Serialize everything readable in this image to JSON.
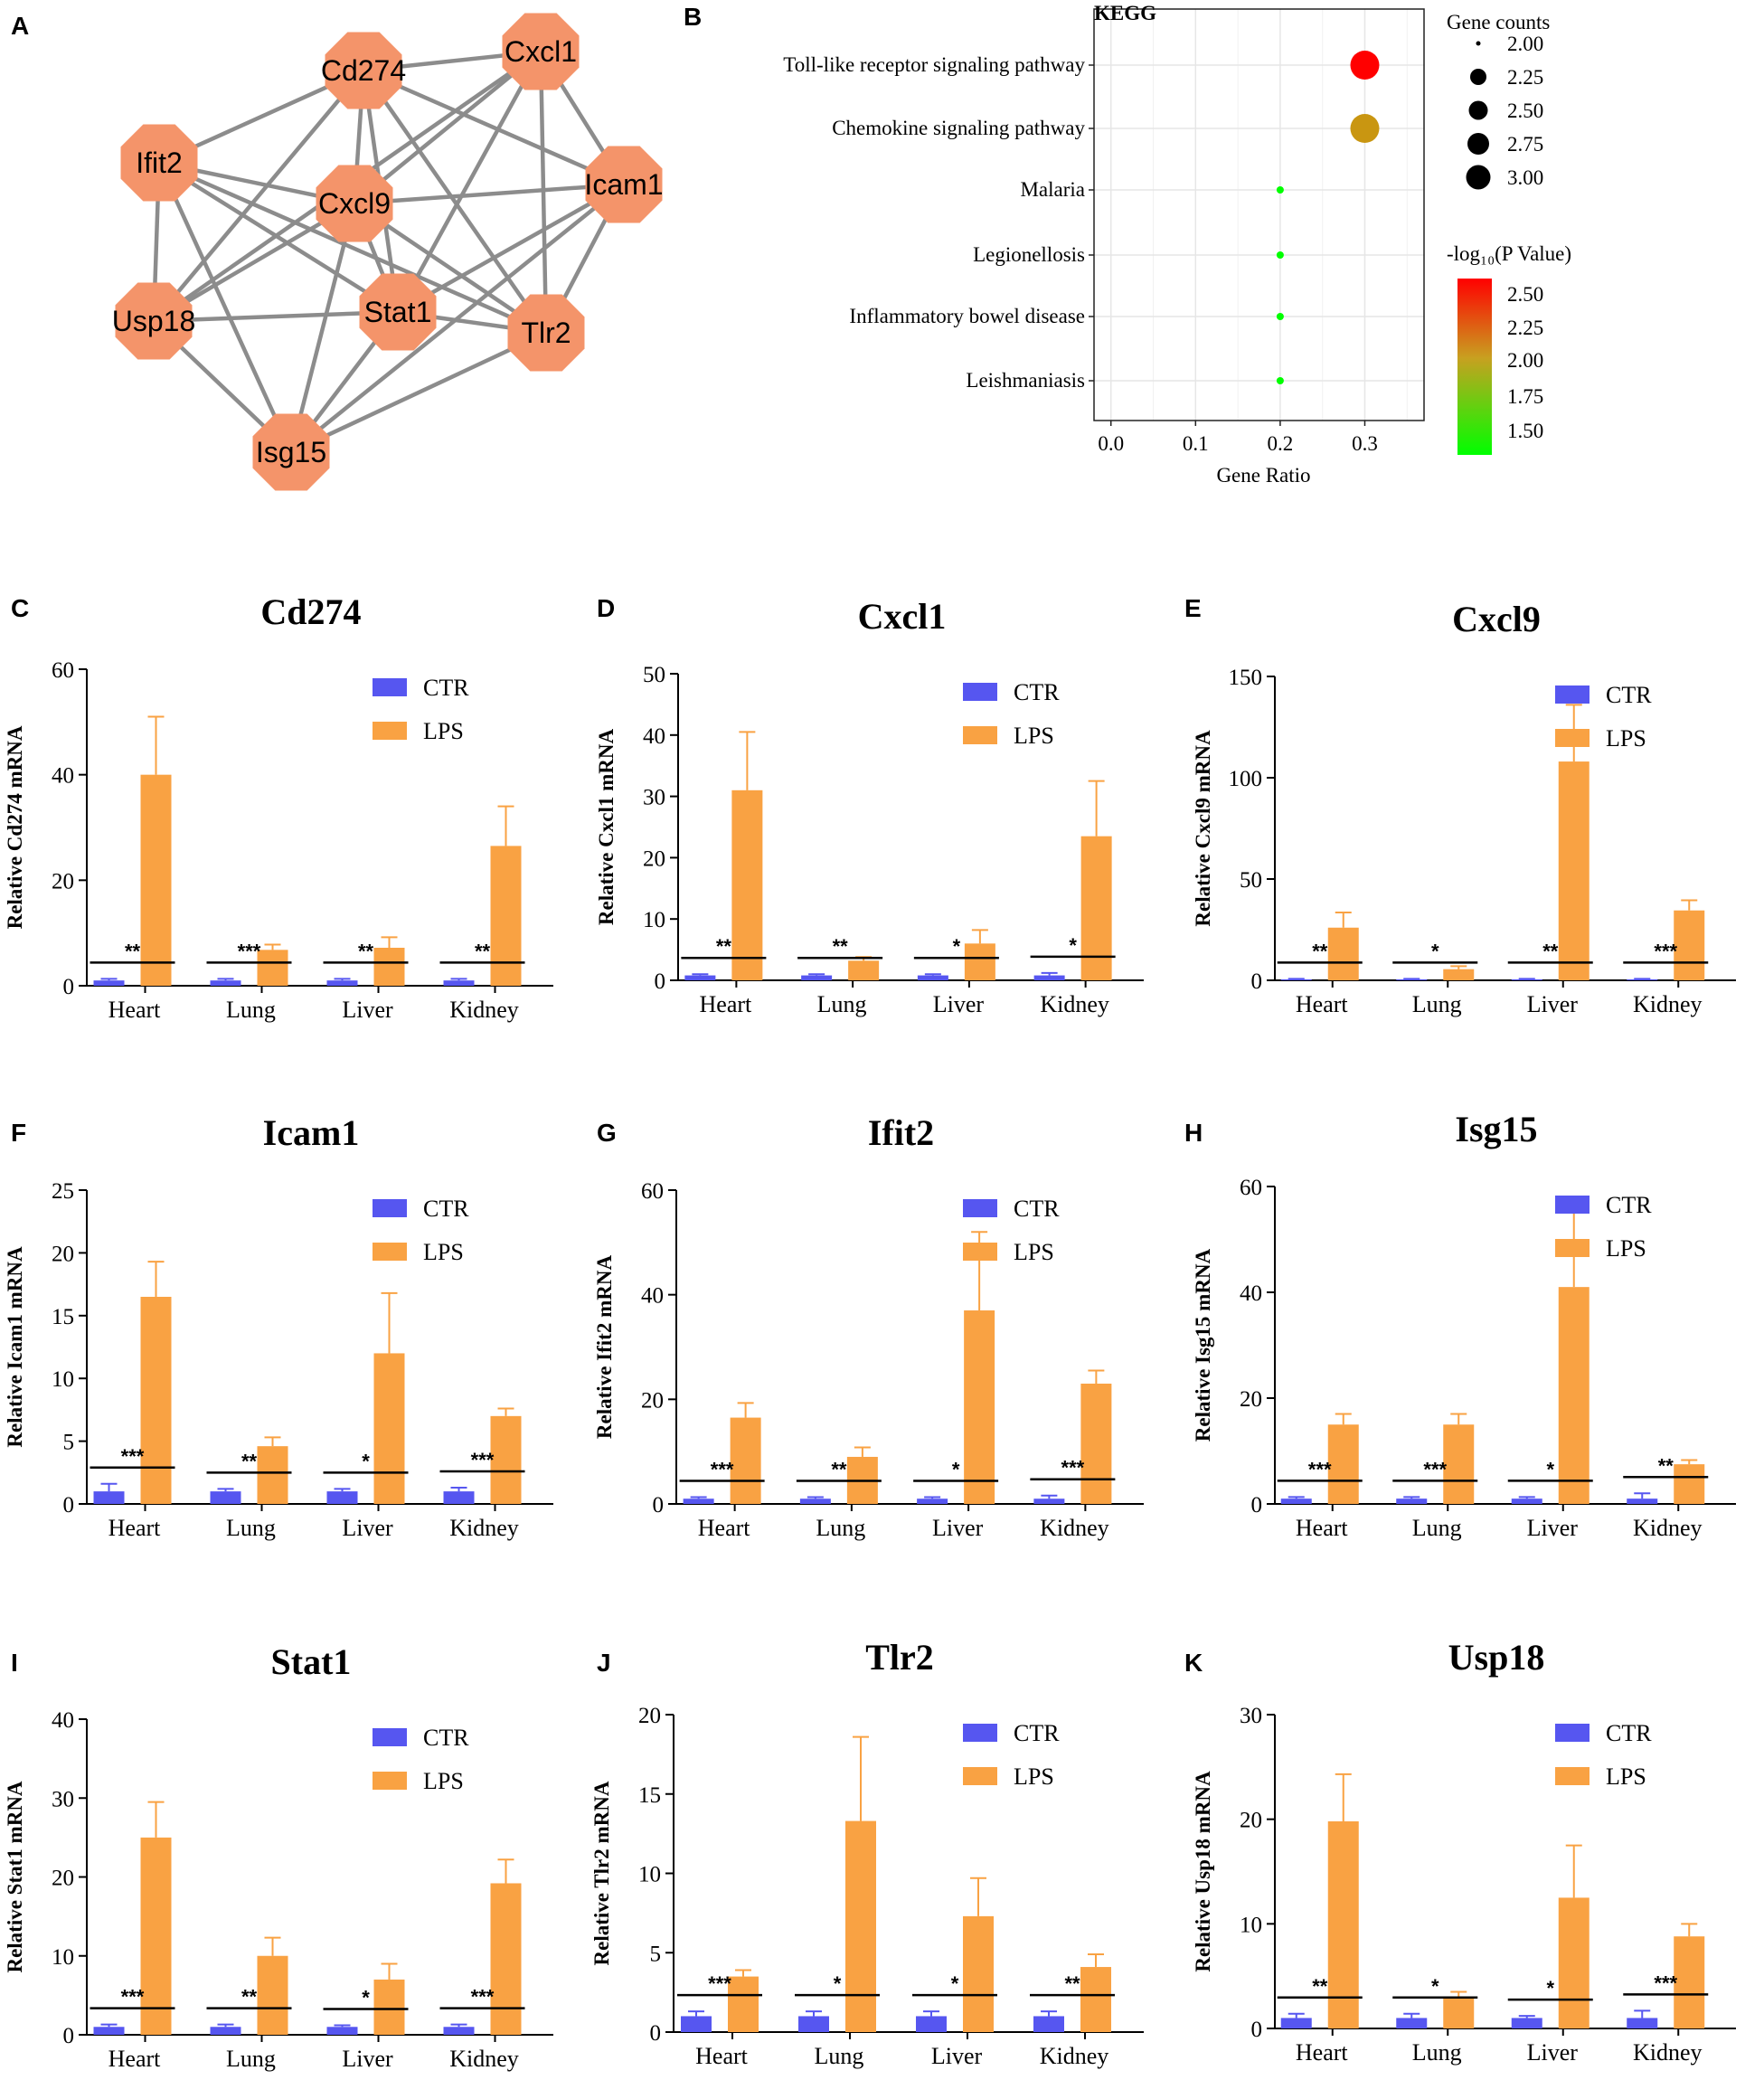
{
  "figure": {
    "panel_labels": [
      "A",
      "B",
      "C",
      "D",
      "E",
      "F",
      "G",
      "H",
      "I",
      "J",
      "K"
    ]
  },
  "network": {
    "nodes": [
      "Cd274",
      "Cxcl1",
      "Ifit2",
      "Cxcl9",
      "Icam1",
      "Usp18",
      "Stat1",
      "Tlr2",
      "Isg15"
    ],
    "edges": [
      [
        "Cd274",
        "Cxcl1"
      ],
      [
        "Cd274",
        "Ifit2"
      ],
      [
        "Cd274",
        "Cxcl9"
      ],
      [
        "Cd274",
        "Icam1"
      ],
      [
        "Cd274",
        "Stat1"
      ],
      [
        "Cd274",
        "Tlr2"
      ],
      [
        "Cd274",
        "Usp18"
      ],
      [
        "Cxcl1",
        "Cxcl9"
      ],
      [
        "Cxcl1",
        "Icam1"
      ],
      [
        "Cxcl1",
        "Stat1"
      ],
      [
        "Cxcl1",
        "Tlr2"
      ],
      [
        "Cxcl1",
        "Usp18"
      ],
      [
        "Ifit2",
        "Cxcl9"
      ],
      [
        "Ifit2",
        "Stat1"
      ],
      [
        "Ifit2",
        "Usp18"
      ],
      [
        "Ifit2",
        "Isg15"
      ],
      [
        "Ifit2",
        "Tlr2"
      ],
      [
        "Cxcl9",
        "Icam1"
      ],
      [
        "Cxcl9",
        "Stat1"
      ],
      [
        "Cxcl9",
        "Usp18"
      ],
      [
        "Cxcl9",
        "Tlr2"
      ],
      [
        "Cxcl9",
        "Isg15"
      ],
      [
        "Icam1",
        "Stat1"
      ],
      [
        "Icam1",
        "Tlr2"
      ],
      [
        "Icam1",
        "Isg15"
      ],
      [
        "Usp18",
        "Stat1"
      ],
      [
        "Usp18",
        "Isg15"
      ],
      [
        "Stat1",
        "Tlr2"
      ],
      [
        "Stat1",
        "Isg15"
      ],
      [
        "Tlr2",
        "Isg15"
      ]
    ],
    "node_color": "#f4946a",
    "edge_color": "#8c8c8c"
  },
  "chart_data": [
    {
      "type": "scatter",
      "panel": "B",
      "title": "KEGG",
      "xlabel": "Gene Ratio",
      "xlim": [
        -0.02,
        0.37
      ],
      "xticks": [
        0.0,
        0.1,
        0.2,
        0.3
      ],
      "xtick_labels": [
        "0.0",
        "0.1",
        "0.2",
        "0.3"
      ],
      "categories": [
        "Toll-like receptor signaling pathway",
        "Chemokine signaling pathway",
        "Malaria",
        "Legionellosis",
        "Inflammatory bowel disease",
        "Leishmaniasis"
      ],
      "gene_ratio": [
        0.3,
        0.3,
        0.2,
        0.2,
        0.2,
        0.2
      ],
      "gene_counts": [
        3,
        3,
        2,
        2,
        2,
        2
      ],
      "neg_log10_p": [
        2.6,
        2.1,
        1.4,
        1.4,
        1.4,
        1.4
      ],
      "size_legend_title": "Gene counts",
      "size_legend": [
        "2.00",
        "2.25",
        "2.50",
        "2.75",
        "3.00"
      ],
      "color_legend_title": "-log₁₀(P Value)",
      "color_legend": [
        "2.50",
        "2.25",
        "2.00",
        "1.75",
        "1.50"
      ]
    },
    {
      "type": "bar",
      "panel": "C",
      "title": "Cd274",
      "ylabel": "Relative Cd274 mRNA",
      "ylim": [
        0,
        60
      ],
      "yticks": [
        0,
        20,
        40,
        60
      ],
      "categories": [
        "Heart",
        "Lung",
        "Liver",
        "Kidney"
      ],
      "series": [
        {
          "name": "CTR",
          "values": [
            1,
            1,
            1,
            1
          ],
          "errors": [
            0.3,
            0.3,
            0.3,
            0.3
          ]
        },
        {
          "name": "LPS",
          "values": [
            40,
            6.8,
            7.2,
            26.5
          ],
          "errors": [
            11,
            1,
            2,
            7.5
          ]
        }
      ],
      "significance": [
        "**",
        "***",
        "**",
        "**"
      ]
    },
    {
      "type": "bar",
      "panel": "D",
      "title": "Cxcl1",
      "ylabel": "Relative Cxcl1 mRNA",
      "ylim": [
        0,
        50
      ],
      "yticks": [
        0,
        10,
        20,
        30,
        40,
        50
      ],
      "categories": [
        "Heart",
        "Lung",
        "Liver",
        "Kidney"
      ],
      "series": [
        {
          "name": "CTR",
          "values": [
            0.8,
            0.8,
            0.8,
            0.8
          ],
          "errors": [
            0.2,
            0.2,
            0.2,
            0.4
          ]
        },
        {
          "name": "LPS",
          "values": [
            31,
            3.2,
            6,
            23.5
          ],
          "errors": [
            9.5,
            0.6,
            2.2,
            9
          ]
        }
      ],
      "significance": [
        "**",
        "**",
        "*",
        "*"
      ]
    },
    {
      "type": "bar",
      "panel": "E",
      "title": "Cxcl9",
      "ylabel": "Relative Cxcl9 mRNA",
      "ylim": [
        0,
        150
      ],
      "yticks": [
        0,
        50,
        100,
        150
      ],
      "categories": [
        "Heart",
        "Lung",
        "Liver",
        "Kidney"
      ],
      "series": [
        {
          "name": "CTR",
          "values": [
            0.5,
            0.5,
            0.5,
            0.5
          ],
          "errors": [
            0.2,
            0.2,
            0.2,
            0.2
          ]
        },
        {
          "name": "LPS",
          "values": [
            26,
            5.5,
            108,
            34.5
          ],
          "errors": [
            7.5,
            1.5,
            28,
            5
          ]
        }
      ],
      "significance": [
        "**",
        "*",
        "**",
        "***"
      ]
    },
    {
      "type": "bar",
      "panel": "F",
      "title": "Icam1",
      "ylabel": "Relative Icam1 mRNA",
      "ylim": [
        0,
        25
      ],
      "yticks": [
        0,
        5,
        10,
        15,
        20,
        25
      ],
      "categories": [
        "Heart",
        "Lung",
        "Liver",
        "Kidney"
      ],
      "series": [
        {
          "name": "CTR",
          "values": [
            1,
            1,
            1,
            1
          ],
          "errors": [
            0.6,
            0.2,
            0.2,
            0.3
          ]
        },
        {
          "name": "LPS",
          "values": [
            16.5,
            4.6,
            12,
            7
          ],
          "errors": [
            2.8,
            0.7,
            4.8,
            0.6
          ]
        }
      ],
      "significance": [
        "***",
        "**",
        "*",
        "***"
      ]
    },
    {
      "type": "bar",
      "panel": "G",
      "title": "Ifit2",
      "ylabel": "Relative Ifit2 mRNA",
      "ylim": [
        0,
        60
      ],
      "yticks": [
        0,
        20,
        40,
        60
      ],
      "categories": [
        "Heart",
        "Lung",
        "Liver",
        "Kidney"
      ],
      "series": [
        {
          "name": "CTR",
          "values": [
            1,
            1,
            1,
            1
          ],
          "errors": [
            0.3,
            0.3,
            0.3,
            0.6
          ]
        },
        {
          "name": "LPS",
          "values": [
            16.5,
            9,
            37,
            23
          ],
          "errors": [
            2.8,
            1.8,
            15,
            2.5
          ]
        }
      ],
      "significance": [
        "***",
        "**",
        "*",
        "***"
      ]
    },
    {
      "type": "bar",
      "panel": "H",
      "title": "Isg15",
      "ylabel": "Relative Isg15 mRNA",
      "ylim": [
        0,
        60
      ],
      "yticks": [
        0,
        20,
        40,
        60
      ],
      "categories": [
        "Heart",
        "Lung",
        "Liver",
        "Kidney"
      ],
      "series": [
        {
          "name": "CTR",
          "values": [
            1,
            1,
            1,
            1
          ],
          "errors": [
            0.3,
            0.3,
            0.3,
            1
          ]
        },
        {
          "name": "LPS",
          "values": [
            15,
            15,
            41,
            7.5
          ],
          "errors": [
            2,
            2,
            16,
            0.8
          ]
        }
      ],
      "significance": [
        "***",
        "***",
        "*",
        "**"
      ]
    },
    {
      "type": "bar",
      "panel": "I",
      "title": "Stat1",
      "ylabel": "Relative Stat1 mRNA",
      "ylim": [
        0,
        40
      ],
      "yticks": [
        0,
        10,
        20,
        30,
        40
      ],
      "categories": [
        "Heart",
        "Lung",
        "Liver",
        "Kidney"
      ],
      "series": [
        {
          "name": "CTR",
          "values": [
            1,
            1,
            1,
            1
          ],
          "errors": [
            0.3,
            0.3,
            0.2,
            0.3
          ]
        },
        {
          "name": "LPS",
          "values": [
            25,
            10,
            7,
            19.2
          ],
          "errors": [
            4.5,
            2.3,
            2,
            3
          ]
        }
      ],
      "significance": [
        "***",
        "**",
        "*",
        "***"
      ]
    },
    {
      "type": "bar",
      "panel": "J",
      "title": "Tlr2",
      "ylabel": "Relative Tlr2 mRNA",
      "ylim": [
        0,
        20
      ],
      "yticks": [
        0,
        5,
        10,
        15,
        20
      ],
      "categories": [
        "Heart",
        "Lung",
        "Liver",
        "Kidney"
      ],
      "series": [
        {
          "name": "CTR",
          "values": [
            1,
            1,
            1,
            1
          ],
          "errors": [
            0.3,
            0.3,
            0.3,
            0.3
          ]
        },
        {
          "name": "LPS",
          "values": [
            3.5,
            13.3,
            7.3,
            4.1
          ],
          "errors": [
            0.4,
            5.3,
            2.4,
            0.8
          ]
        }
      ],
      "significance": [
        "***",
        "*",
        "*",
        "**"
      ]
    },
    {
      "type": "bar",
      "panel": "K",
      "title": "Usp18",
      "ylabel": "Relative Usp18 mRNA",
      "ylim": [
        0,
        30
      ],
      "yticks": [
        0,
        10,
        20,
        30
      ],
      "categories": [
        "Heart",
        "Lung",
        "Liver",
        "Kidney"
      ],
      "series": [
        {
          "name": "CTR",
          "values": [
            1,
            1,
            1,
            1
          ],
          "errors": [
            0.4,
            0.4,
            0.2,
            0.7
          ]
        },
        {
          "name": "LPS",
          "values": [
            19.8,
            3,
            12.5,
            8.8
          ],
          "errors": [
            4.5,
            0.5,
            5,
            1.2
          ]
        }
      ],
      "significance": [
        "**",
        "*",
        "*",
        "***"
      ]
    }
  ],
  "legend": {
    "ctr_label": "CTR",
    "lps_label": "LPS",
    "ctr_color": "#5656f0",
    "lps_color": "#f9a243"
  }
}
